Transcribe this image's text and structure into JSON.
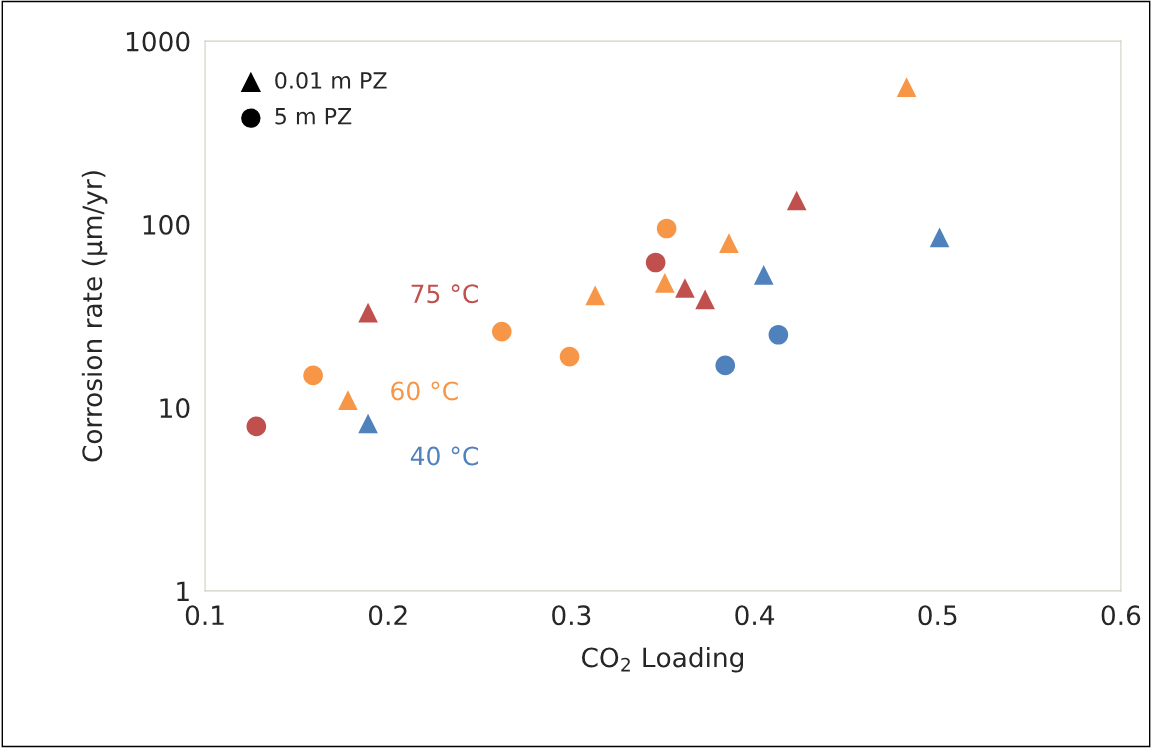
{
  "chart_data": {
    "type": "scatter",
    "xlabel": "CO$_{2}$ Loading",
    "ylabel": "Corrosion rate (µm/yr)",
    "log": "y",
    "xlim": [
      0.1,
      0.6
    ],
    "xticks": [
      0.1,
      0.2,
      0.3,
      0.4,
      0.5,
      0.6
    ],
    "ylim": [
      1,
      1000
    ],
    "yticks": [
      1,
      10,
      100,
      1000
    ],
    "grid": false,
    "series": [
      {
        "name": "75 °C",
        "color": "#c0504d",
        "marker": "triangle",
        "x": [
          0.189,
          0.362,
          0.373,
          0.423
        ],
        "values": [
          33,
          45,
          39,
          135
        ]
      },
      {
        "name": "60 °C",
        "color": "#f79646",
        "marker": "triangle",
        "x": [
          0.178,
          0.313,
          0.351,
          0.386,
          0.483
        ],
        "values": [
          11,
          41,
          48,
          79,
          561
        ]
      },
      {
        "name": "40 °C",
        "color": "#4f81bd",
        "marker": "triangle",
        "x": [
          0.189,
          0.405,
          0.501
        ],
        "values": [
          8.2,
          53,
          85
        ]
      },
      {
        "color": "#c0504d",
        "marker": "circle",
        "x": [
          0.128,
          0.346
        ],
        "values": [
          7.9,
          62
        ]
      },
      {
        "color": "#f79646",
        "marker": "circle",
        "x": [
          0.159,
          0.262,
          0.299,
          0.352
        ],
        "values": [
          15,
          26,
          19,
          95
        ]
      },
      {
        "color": "#4f81bd",
        "marker": "circle",
        "x": [
          0.384,
          0.413
        ],
        "values": [
          17,
          25
        ]
      }
    ],
    "annotations": [
      "0.01 m PZ",
      "5 m PZ"
    ]
  }
}
